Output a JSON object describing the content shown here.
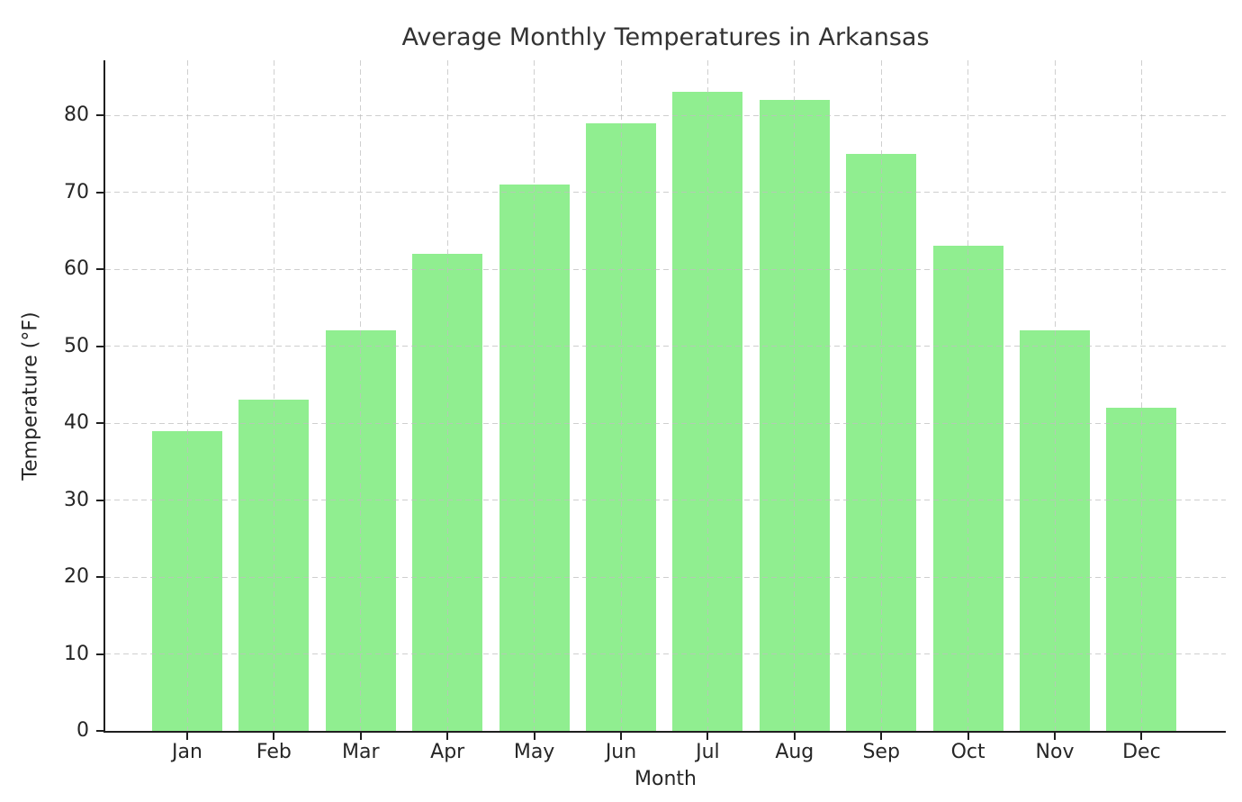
{
  "chart_data": {
    "type": "bar",
    "title": "Average Monthly Temperatures in Arkansas",
    "xlabel": "Month",
    "ylabel": "Temperature (°F)",
    "categories": [
      "Jan",
      "Feb",
      "Mar",
      "Apr",
      "May",
      "Jun",
      "Jul",
      "Aug",
      "Sep",
      "Oct",
      "Nov",
      "Dec"
    ],
    "values": [
      39,
      43,
      52,
      62,
      71,
      79,
      83,
      82,
      75,
      63,
      52,
      42
    ],
    "yticks": [
      0,
      10,
      20,
      30,
      40,
      50,
      60,
      70,
      80
    ],
    "ylim": [
      0,
      87.15
    ],
    "grid": "dashed, both axes, drawn above bars",
    "legend": "none",
    "colors": {
      "bar": "#90EE90",
      "spine": "#1f1f1f",
      "grid": "#bfbfbf",
      "text": "#262626",
      "title_text": "#333333",
      "background": "#ffffff"
    }
  }
}
